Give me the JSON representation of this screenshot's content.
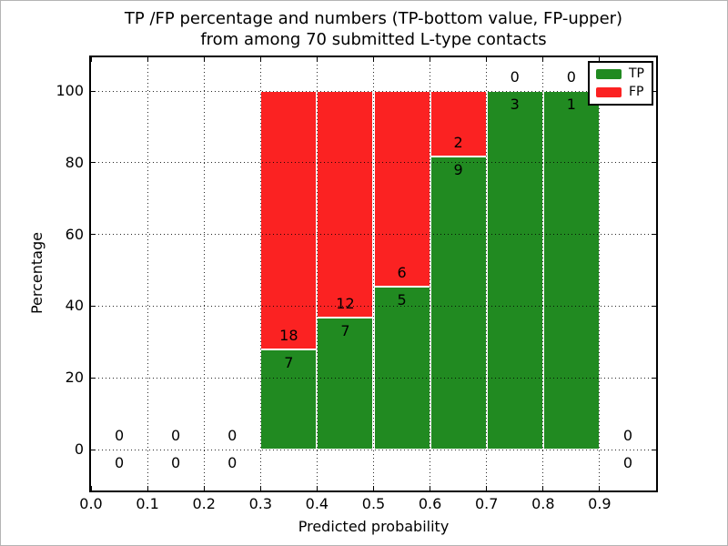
{
  "chart_data": {
    "type": "bar",
    "stacked": true,
    "title_line1": "TP /FP percentage and numbers (TP-bottom value, FP-upper)",
    "title_line2": "from among 70 submitted L-type contacts",
    "xlabel": "Predicted probability",
    "ylabel": "Percentage",
    "total_contacts": 70,
    "xlim": [
      0.0,
      1.0
    ],
    "ylim": [
      -11.4,
      109.4
    ],
    "bin_width": 0.1,
    "x_tick_values": [
      0.0,
      0.1,
      0.2,
      0.3,
      0.4,
      0.5,
      0.6,
      0.7,
      0.8,
      0.9
    ],
    "x_tick_labels": [
      "0.0",
      "0.1",
      "0.2",
      "0.3",
      "0.4",
      "0.5",
      "0.6",
      "0.7",
      "0.8",
      "0.9"
    ],
    "y_tick_values": [
      0,
      20,
      40,
      60,
      80,
      100
    ],
    "y_tick_labels": [
      "0",
      "20",
      "40",
      "60",
      "80",
      "100"
    ],
    "grid": true,
    "grid_style": "dotted",
    "bins": [
      {
        "x0": 0.0,
        "x1": 0.1,
        "tp": 0,
        "fp": 0
      },
      {
        "x0": 0.1,
        "x1": 0.2,
        "tp": 0,
        "fp": 0
      },
      {
        "x0": 0.2,
        "x1": 0.3,
        "tp": 0,
        "fp": 0
      },
      {
        "x0": 0.3,
        "x1": 0.4,
        "tp": 7,
        "fp": 18
      },
      {
        "x0": 0.4,
        "x1": 0.5,
        "tp": 7,
        "fp": 12
      },
      {
        "x0": 0.5,
        "x1": 0.6,
        "tp": 5,
        "fp": 6
      },
      {
        "x0": 0.6,
        "x1": 0.7,
        "tp": 9,
        "fp": 2
      },
      {
        "x0": 0.7,
        "x1": 0.8,
        "tp": 3,
        "fp": 0
      },
      {
        "x0": 0.8,
        "x1": 0.9,
        "tp": 1,
        "fp": 0
      },
      {
        "x0": 0.9,
        "x1": 1.0,
        "tp": 0,
        "fp": 0
      }
    ],
    "colors": {
      "tp": "#218a21",
      "fp": "#fb2222",
      "bar_edge": "#ffffff",
      "frame": "#000000"
    },
    "legend_position": "upper right",
    "legend": [
      {
        "label": "TP",
        "color": "#218a21"
      },
      {
        "label": "FP",
        "color": "#fb2222"
      }
    ]
  }
}
